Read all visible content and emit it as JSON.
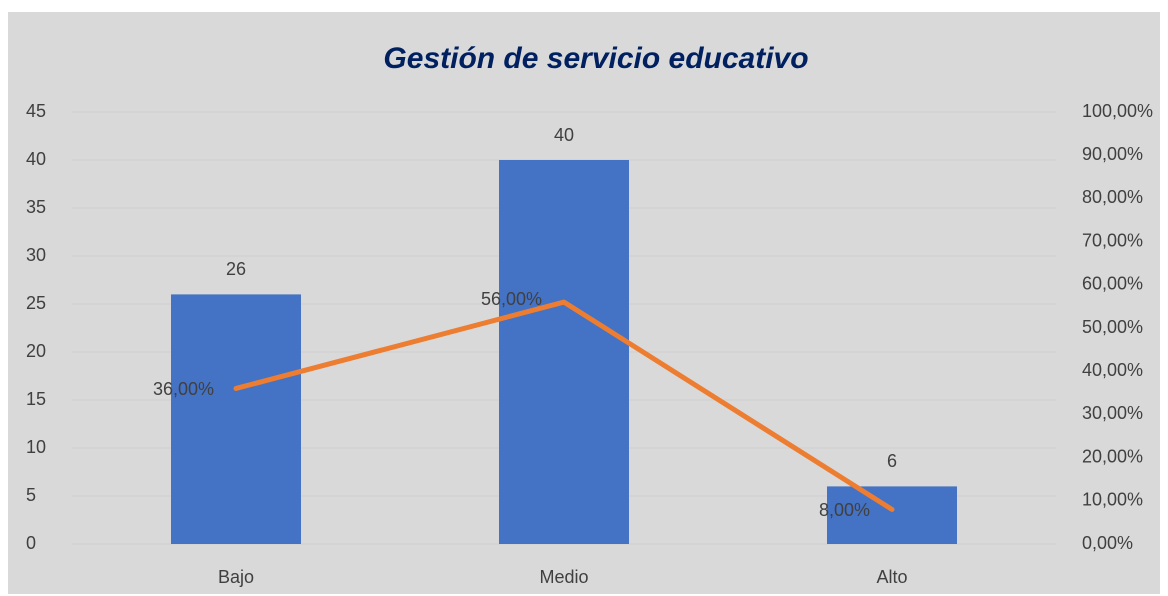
{
  "chart_data": {
    "type": "bar-line",
    "title": "Gestión de servicio educativo",
    "categories": [
      "Bajo",
      "Medio",
      "Alto"
    ],
    "series": [
      {
        "type": "bar",
        "color": "#4472c4",
        "values": [
          26,
          40,
          6
        ]
      },
      {
        "type": "line",
        "color": "#ed7d31",
        "axis": "y2",
        "values": [
          36,
          56,
          8
        ],
        "value_labels": [
          "36,00%",
          "56,00%",
          "8,00%"
        ]
      }
    ],
    "ylim": [
      0,
      45
    ],
    "yticks": [
      0,
      5,
      10,
      15,
      20,
      25,
      30,
      35,
      40,
      45
    ],
    "y2lim": [
      0,
      100
    ],
    "y2ticks": [
      {
        "value": 0,
        "label": "0,00%"
      },
      {
        "value": 10,
        "label": "10,00%"
      },
      {
        "value": 20,
        "label": "20,00%"
      },
      {
        "value": 30,
        "label": "30,00%"
      },
      {
        "value": 40,
        "label": "40,00%"
      },
      {
        "value": 50,
        "label": "50,00%"
      },
      {
        "value": 60,
        "label": "60,00%"
      },
      {
        "value": 70,
        "label": "70,00%"
      },
      {
        "value": 80,
        "label": "80,00%"
      },
      {
        "value": 90,
        "label": "90,00%"
      },
      {
        "value": 100,
        "label": "100,00%"
      }
    ],
    "grid": true
  }
}
